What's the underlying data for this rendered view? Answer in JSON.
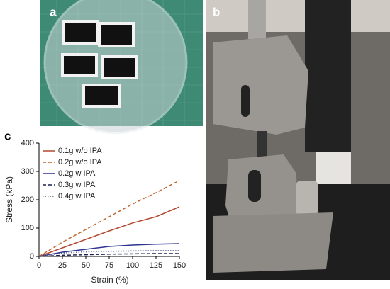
{
  "panel_labels": [
    "a",
    "b",
    "c"
  ],
  "chart_data": {
    "type": "line",
    "x_label": "Strain (%)",
    "y_label": "Stress (kPa)",
    "x": [
      0,
      25,
      50,
      75,
      100,
      125,
      150
    ],
    "series": [
      {
        "name": "0.1g w/o IPA",
        "color": "#b24a32",
        "linestyle": "solid",
        "values": [
          0,
          30,
          60,
          90,
          118,
          140,
          175
        ]
      },
      {
        "name": "0.2g w/o IPA",
        "color": "#c06a35",
        "linestyle": "dashed",
        "values": [
          0,
          50,
          95,
          140,
          185,
          225,
          268
        ]
      },
      {
        "name": "0.2g w IPA",
        "color": "#2c3592",
        "linestyle": "solid",
        "values": [
          0,
          15,
          25,
          35,
          40,
          43,
          45
        ]
      },
      {
        "name": "0.3g w IPA",
        "color": "#1c2250",
        "linestyle": "dashed",
        "values": [
          0,
          4,
          6,
          8,
          9,
          10,
          10
        ]
      },
      {
        "name": "0.4g w IPA",
        "color": "#555a80",
        "linestyle": "dotted",
        "values": [
          0,
          12,
          16,
          18,
          19,
          20,
          20
        ]
      }
    ],
    "xlim": [
      0,
      150
    ],
    "xticks": [
      0,
      25,
      50,
      75,
      100,
      125,
      150
    ],
    "ylim": [
      0,
      400
    ],
    "yticks": [
      0,
      100,
      200,
      300,
      400
    ],
    "legend": "upper left"
  }
}
